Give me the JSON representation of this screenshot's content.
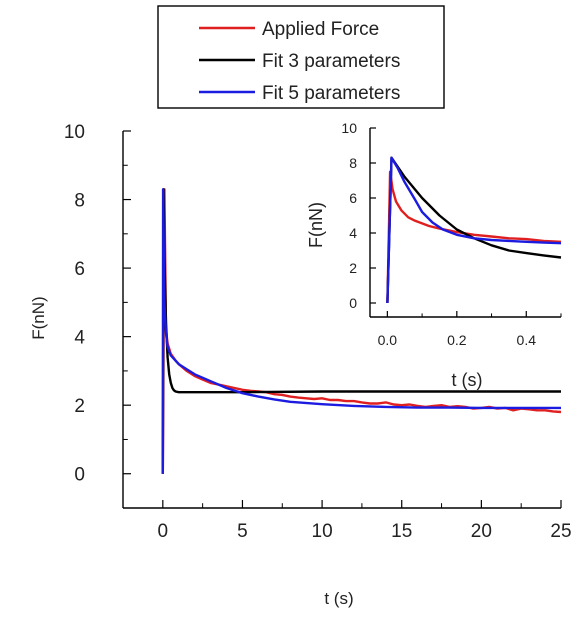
{
  "chart_data": [
    {
      "id": "main",
      "type": "line",
      "xlabel": "t (s)",
      "ylabel": "F(nN)",
      "xlim": [
        -2.5,
        25
      ],
      "ylim": [
        -1,
        10
      ],
      "xticks": [
        0,
        5,
        10,
        15,
        20,
        25
      ],
      "yticks": [
        0,
        2,
        4,
        6,
        8,
        10
      ],
      "grid": false,
      "legend": "top-center",
      "series": [
        {
          "name": "Applied Force",
          "color": "#e02020",
          "x": [
            0,
            0.1,
            0.2,
            0.3,
            0.5,
            0.8,
            1.0,
            1.5,
            2.0,
            2.5,
            3.0,
            3.5,
            4.0,
            4.5,
            5.0,
            5.5,
            6.0,
            6.5,
            7.0,
            7.5,
            8.0,
            8.5,
            9.0,
            9.5,
            10.0,
            10.5,
            11.0,
            11.5,
            12.0,
            12.5,
            13.0,
            13.5,
            14.0,
            14.5,
            15.0,
            15.5,
            16.0,
            16.5,
            17.0,
            17.5,
            18.0,
            18.5,
            19.0,
            19.5,
            20.0,
            20.5,
            21.0,
            21.5,
            22.0,
            22.5,
            23.0,
            23.5,
            24.0,
            24.5,
            25.0
          ],
          "y": [
            0,
            8.3,
            4.2,
            3.8,
            3.5,
            3.3,
            3.2,
            3.0,
            2.85,
            2.75,
            2.65,
            2.6,
            2.55,
            2.5,
            2.45,
            2.42,
            2.4,
            2.38,
            2.32,
            2.3,
            2.25,
            2.22,
            2.2,
            2.18,
            2.2,
            2.15,
            2.15,
            2.12,
            2.12,
            2.08,
            2.05,
            2.05,
            2.08,
            2.02,
            2.0,
            2.02,
            1.98,
            1.95,
            1.98,
            2.0,
            1.95,
            1.97,
            1.95,
            1.9,
            1.92,
            1.95,
            1.9,
            1.92,
            1.85,
            1.9,
            1.88,
            1.85,
            1.85,
            1.82,
            1.8
          ]
        },
        {
          "name": "Fit 3 parameters",
          "color": "#000000",
          "x": [
            0,
            0.05,
            0.1,
            0.2,
            0.3,
            0.4,
            0.5,
            0.6,
            0.7,
            0.8,
            1.0,
            1.5,
            2.0,
            3.0,
            5.0,
            10.0,
            15.0,
            20.0,
            25.0
          ],
          "y": [
            0,
            8.3,
            6.3,
            4.4,
            3.4,
            2.9,
            2.65,
            2.5,
            2.43,
            2.4,
            2.38,
            2.38,
            2.38,
            2.38,
            2.38,
            2.4,
            2.4,
            2.4,
            2.4
          ]
        },
        {
          "name": "Fit 5 parameters",
          "color": "#1c1ce0",
          "x": [
            0,
            0.02,
            0.1,
            0.2,
            0.3,
            0.5,
            1.0,
            1.5,
            2.0,
            3.0,
            4.0,
            5.0,
            6.0,
            7.0,
            8.0,
            10.0,
            12.0,
            14.0,
            16.0,
            18.0,
            20.0,
            22.0,
            25.0
          ],
          "y": [
            0,
            8.3,
            5.0,
            4.1,
            3.7,
            3.45,
            3.2,
            3.05,
            2.9,
            2.7,
            2.5,
            2.35,
            2.25,
            2.17,
            2.1,
            2.03,
            1.98,
            1.95,
            1.93,
            1.93,
            1.92,
            1.92,
            1.92
          ]
        }
      ]
    },
    {
      "id": "inset",
      "type": "line",
      "xlabel": "t (s)",
      "ylabel": "F(nN)",
      "xlim": [
        -0.05,
        0.5
      ],
      "ylim": [
        -0.8,
        10
      ],
      "xticks": [
        0.0,
        0.2,
        0.4
      ],
      "xtick_labels": [
        "0.0",
        "0.2",
        "0.4"
      ],
      "yticks": [
        0,
        2,
        4,
        6,
        8,
        10
      ],
      "grid": false,
      "series": [
        {
          "name": "Applied Force",
          "color": "#e02020",
          "x": [
            0,
            0.008,
            0.015,
            0.025,
            0.04,
            0.06,
            0.08,
            0.1,
            0.12,
            0.15,
            0.2,
            0.25,
            0.3,
            0.35,
            0.4,
            0.45,
            0.5
          ],
          "y": [
            0,
            7.5,
            6.5,
            5.8,
            5.3,
            4.9,
            4.7,
            4.55,
            4.4,
            4.25,
            4.05,
            3.9,
            3.8,
            3.7,
            3.65,
            3.55,
            3.5
          ]
        },
        {
          "name": "Fit 3 parameters",
          "color": "#000000",
          "x": [
            0,
            0.012,
            0.05,
            0.1,
            0.15,
            0.2,
            0.25,
            0.3,
            0.35,
            0.4,
            0.45,
            0.5
          ],
          "y": [
            0,
            8.3,
            7.2,
            6.0,
            5.0,
            4.2,
            3.7,
            3.3,
            3.0,
            2.85,
            2.72,
            2.6
          ]
        },
        {
          "name": "Fit 5 parameters",
          "color": "#1c1ce0",
          "x": [
            0,
            0.012,
            0.03,
            0.05,
            0.08,
            0.1,
            0.13,
            0.16,
            0.2,
            0.25,
            0.3,
            0.35,
            0.4,
            0.45,
            0.5
          ],
          "y": [
            0,
            8.3,
            7.7,
            6.9,
            5.9,
            5.2,
            4.6,
            4.2,
            3.9,
            3.7,
            3.6,
            3.55,
            3.5,
            3.45,
            3.42
          ]
        }
      ]
    }
  ]
}
